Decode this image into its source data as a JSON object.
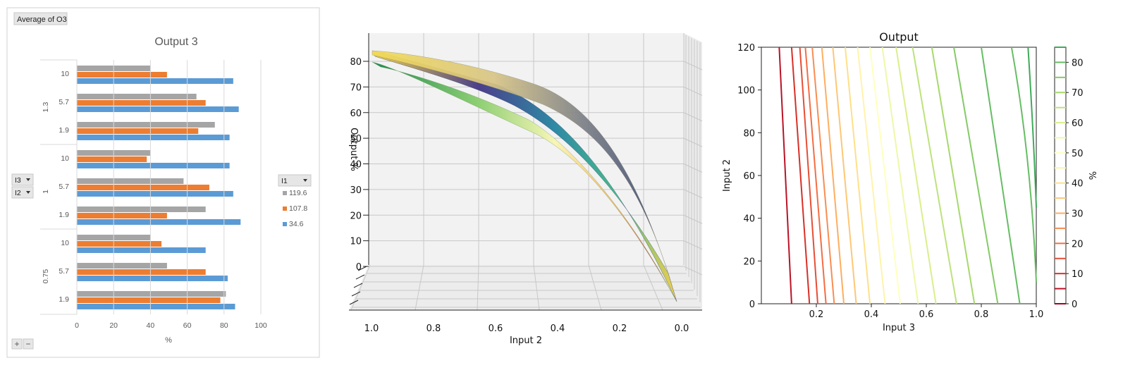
{
  "chart_data": [
    {
      "type": "bar",
      "orientation": "horizontal",
      "pivot_button": "Average of O3",
      "title": "Output 3",
      "xlabel": "%",
      "xlim": [
        0,
        100
      ],
      "xticks": [
        "0",
        "20",
        "40",
        "60",
        "80",
        "100"
      ],
      "groups": [
        {
          "label": "1.3",
          "categories": [
            "10",
            "5.7",
            "1.9"
          ]
        },
        {
          "label": "1",
          "categories": [
            "10",
            "5.7",
            "1.9"
          ]
        },
        {
          "label": "0.75",
          "categories": [
            "10",
            "5.7",
            "1.9"
          ]
        }
      ],
      "row_fields": [
        "I3",
        "I2"
      ],
      "legend_field": "I1",
      "legend_placement": "right",
      "series": [
        {
          "name": "119.6",
          "color": "#a5a5a5",
          "values": [
            40,
            65,
            75,
            40,
            58,
            70,
            40,
            49,
            81
          ]
        },
        {
          "name": "107.8",
          "color": "#ed7d31",
          "values": [
            49,
            70,
            66,
            38,
            72,
            49,
            46,
            70,
            78
          ]
        },
        {
          "name": "34.6",
          "color": "#5b9bd5",
          "values": [
            85,
            88,
            83,
            83,
            85,
            89,
            70,
            82,
            86
          ]
        }
      ],
      "buttons": [
        "+",
        "−"
      ]
    },
    {
      "type": "surface",
      "xlabel": "Input 2",
      "zlabel": "Output %",
      "xticks": [
        "1.0",
        "0.8",
        "0.6",
        "0.4",
        "0.2",
        "0.0"
      ],
      "zticks": [
        "0",
        "10",
        "20",
        "30",
        "40",
        "50",
        "60",
        "70",
        "80"
      ],
      "surfaces": [
        {
          "colormap": "YlGn",
          "approx_curve": {
            "x": [
              1.0,
              0.8,
              0.6,
              0.4,
              0.2,
              0.0
            ],
            "z": [
              78,
              64,
              46,
              25,
              8,
              0
            ]
          }
        },
        {
          "colormap": "YlGnBu",
          "approx_curve": {
            "x": [
              1.0,
              0.8,
              0.6,
              0.4,
              0.2,
              0.0
            ],
            "z": [
              83,
              79,
              71,
              53,
              27,
              0
            ]
          }
        },
        {
          "colormap": "cividis",
          "approx_curve": {
            "x": [
              1.0,
              0.8,
              0.6,
              0.4,
              0.2,
              0.0
            ],
            "z": [
              84,
              81,
              77,
              67,
              43,
              0
            ]
          }
        }
      ]
    },
    {
      "type": "contour",
      "title": "Output",
      "xlabel": "Input 3",
      "ylabel": "Input 2",
      "xlim": [
        0,
        1.0
      ],
      "ylim": [
        0,
        120
      ],
      "xticks": [
        "0.2",
        "0.4",
        "0.6",
        "0.8",
        "1.0"
      ],
      "yticks": [
        "0",
        "20",
        "40",
        "60",
        "80",
        "100",
        "120"
      ],
      "colormap": "RdYlGn",
      "colorbar": {
        "label": "%",
        "ticks": [
          "0",
          "10",
          "20",
          "30",
          "40",
          "50",
          "60",
          "70",
          "80"
        ],
        "levels": [
          0,
          5,
          10,
          15,
          20,
          25,
          30,
          35,
          40,
          45,
          50,
          55,
          60,
          65,
          70,
          75,
          80,
          85
        ],
        "colors": [
          "#a50026",
          "#b91326",
          "#d73027",
          "#e54e35",
          "#f46d43",
          "#f88d52",
          "#fdae61",
          "#fdc776",
          "#fee08b",
          "#fff3ac",
          "#ffffbf",
          "#eef8a8",
          "#d9ef8b",
          "#bde27b",
          "#a6d96a",
          "#84ca66",
          "#66bd63",
          "#3faa59"
        ]
      },
      "contour_levels": [
        5,
        10,
        15,
        20,
        25,
        30,
        35,
        40,
        45,
        50,
        55,
        60,
        65,
        70,
        75,
        80
      ],
      "contour_x_at_bottom": [
        0.11,
        0.175,
        0.205,
        0.235,
        0.265,
        0.3,
        0.345,
        0.395,
        0.45,
        0.505,
        0.57,
        0.635,
        0.71,
        0.775,
        0.86,
        0.94
      ],
      "contour_x_at_top": [
        0.065,
        0.11,
        0.14,
        0.16,
        0.185,
        0.22,
        0.26,
        0.305,
        0.35,
        0.395,
        0.44,
        0.49,
        0.55,
        0.62,
        0.7,
        0.8
      ]
    }
  ]
}
